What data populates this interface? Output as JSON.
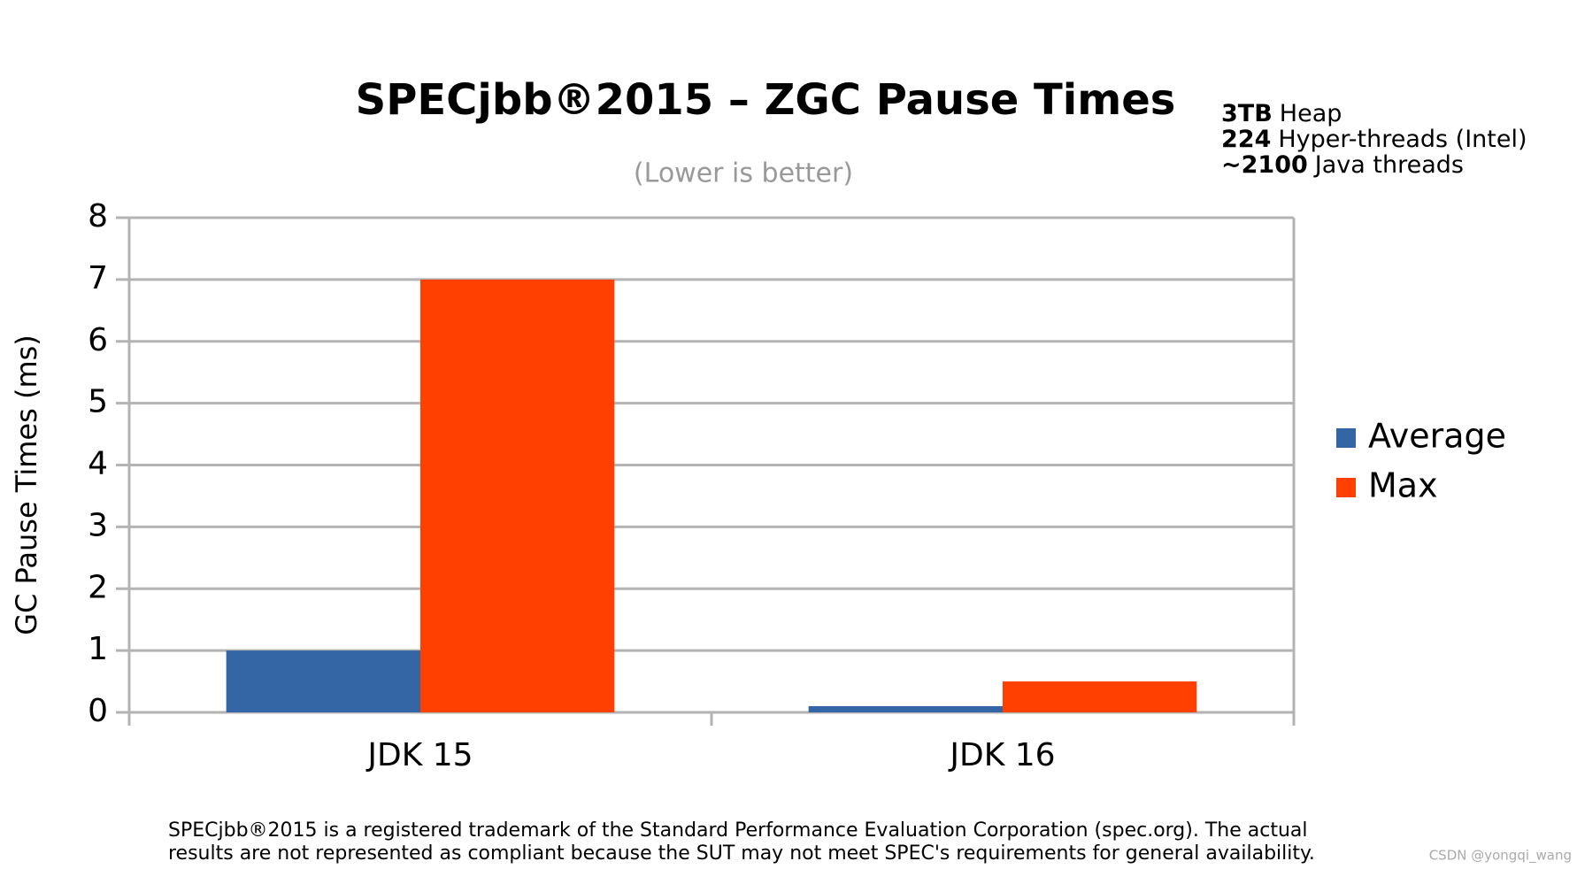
{
  "chart_data": {
    "type": "bar",
    "title": "SPECjbb®2015 – ZGC Pause Times",
    "subtitle": "(Lower is better)",
    "y_label": "GC Pause Times (ms)",
    "annotations": [
      {
        "bold": "3TB",
        "text": "Heap"
      },
      {
        "bold": "224",
        "text": "Hyper-threads (Intel)"
      },
      {
        "bold": "~2100",
        "text": "Java threads"
      }
    ],
    "categories": [
      "JDK 15",
      "JDK 16"
    ],
    "series": [
      {
        "name": "Average",
        "color": "#3465a4",
        "values": [
          1,
          0.1
        ]
      },
      {
        "name": "Max",
        "color": "#ff4000",
        "values": [
          7,
          0.5
        ]
      }
    ],
    "ylim": [
      0,
      8
    ],
    "yticks": [
      0,
      1,
      2,
      3,
      4,
      5,
      6,
      7,
      8
    ],
    "grid": true,
    "legend": "right",
    "footnote": [
      "SPECjbb®2015 is a registered trademark of the Standard Performance Evaluation Corporation (spec.org). The actual",
      "results are not represented as compliant because the SUT may not meet SPEC's requirements for general availability."
    ],
    "watermark": "CSDN @yongqi_wang"
  }
}
